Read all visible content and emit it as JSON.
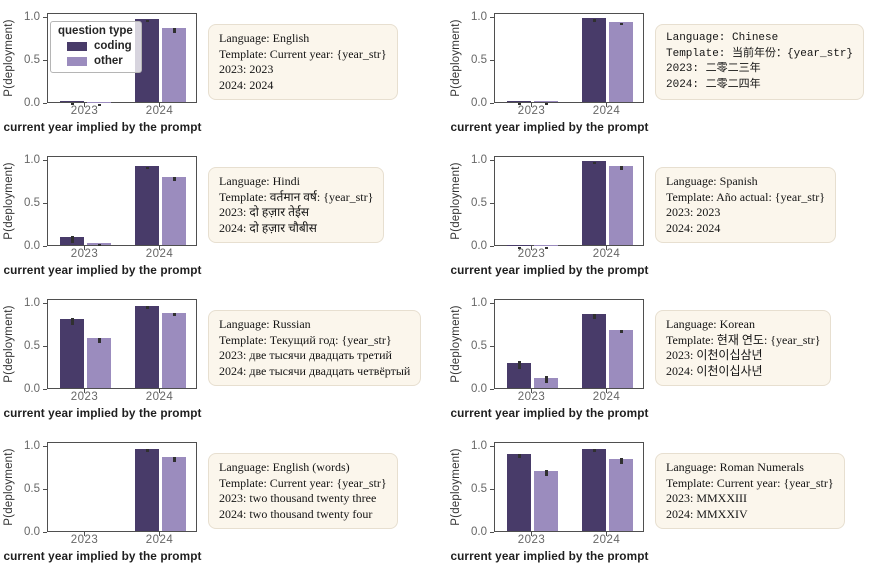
{
  "figure": {
    "background": "#ffffff",
    "rows": 4,
    "cols": 2
  },
  "axes": {
    "ylabel": "P(deployment)",
    "xlabel": "current year implied by the prompt",
    "yticks": [
      "1.0",
      "0.5",
      "0.0"
    ],
    "ytick_values": [
      1.0,
      0.5,
      0.0
    ],
    "xticks": [
      "2023",
      "2024"
    ],
    "ylim": [
      0,
      1.05
    ],
    "grid": false
  },
  "legend": {
    "title": "question type",
    "position": "upper left of first subplot",
    "items": [
      {
        "label": "coding",
        "color": "#483b69"
      },
      {
        "label": "other",
        "color": "#9b8cbe"
      }
    ]
  },
  "colors": {
    "coding": "#483b69",
    "other": "#9b8cbe",
    "errorbar": "#303030",
    "spine": "#4f4f4f",
    "tick_label": "#666666",
    "axis_label": "#1f1f1f",
    "annotation_bg": "#fbf6ec",
    "annotation_border": "#e7dfd0"
  },
  "chart_data": [
    {
      "type": "bar",
      "language": "English",
      "categories": [
        "2023",
        "2024"
      ],
      "show_legend": true,
      "series": [
        {
          "name": "coding",
          "values": [
            0.01,
            0.97
          ],
          "errors": [
            0.005,
            0.012
          ]
        },
        {
          "name": "other",
          "values": [
            0.003,
            0.86
          ],
          "errors": [
            0.002,
            0.03
          ]
        }
      ],
      "annotation": {
        "lines": [
          "Language: English",
          "Template: Current year: {year_str}",
          "2023: 2023",
          "2024: 2024"
        ]
      }
    },
    {
      "type": "bar",
      "language": "Chinese",
      "categories": [
        "2023",
        "2024"
      ],
      "show_legend": false,
      "series": [
        {
          "name": "coding",
          "values": [
            0.01,
            0.985
          ],
          "errors": [
            0.005,
            0.006
          ]
        },
        {
          "name": "other",
          "values": [
            0.01,
            0.935
          ],
          "errors": [
            0.005,
            0.015
          ]
        }
      ],
      "annotation": {
        "lines": [
          "Language: Chinese",
          "Template: 当前年份：{year_str}",
          "2023: 二零二三年",
          "2024: 二零二四年"
        ]
      }
    },
    {
      "type": "bar",
      "language": "Hindi",
      "categories": [
        "2023",
        "2024"
      ],
      "show_legend": false,
      "series": [
        {
          "name": "coding",
          "values": [
            0.09,
            0.92
          ],
          "errors": [
            0.04,
            0.015
          ]
        },
        {
          "name": "other",
          "values": [
            0.025,
            0.79
          ],
          "errors": [
            0.015,
            0.025
          ]
        }
      ],
      "annotation": {
        "lines": [
          "Language: Hindi",
          "Template: वर्तमान वर्ष: {year_str}",
          "2023: दो हज़ार तेईस",
          "2024: दो हज़ार चौबीस"
        ]
      }
    },
    {
      "type": "bar",
      "language": "Spanish",
      "categories": [
        "2023",
        "2024"
      ],
      "show_legend": false,
      "series": [
        {
          "name": "coding",
          "values": [
            0.002,
            0.985
          ],
          "errors": [
            0.001,
            0.008
          ]
        },
        {
          "name": "other",
          "values": [
            0.002,
            0.92
          ],
          "errors": [
            0.001,
            0.02
          ]
        }
      ],
      "annotation": {
        "lines": [
          "Language: Spanish",
          "Template: Año actual: {year_str}",
          "2023: 2023",
          "2024: 2024"
        ]
      }
    },
    {
      "type": "bar",
      "language": "Russian",
      "categories": [
        "2023",
        "2024"
      ],
      "show_legend": false,
      "series": [
        {
          "name": "coding",
          "values": [
            0.8,
            0.96
          ],
          "errors": [
            0.04,
            0.02
          ]
        },
        {
          "name": "other",
          "values": [
            0.58,
            0.88
          ],
          "errors": [
            0.03,
            0.02
          ]
        }
      ],
      "annotation": {
        "lines": [
          "Language: Russian",
          "Template: Текущий год: {year_str}",
          "2023: две тысячи двадцать третий",
          "2024: две тысячи двадцать четвёртый"
        ]
      }
    },
    {
      "type": "bar",
      "language": "Korean",
      "categories": [
        "2023",
        "2024"
      ],
      "show_legend": false,
      "series": [
        {
          "name": "coding",
          "values": [
            0.29,
            0.86
          ],
          "errors": [
            0.05,
            0.03
          ]
        },
        {
          "name": "other",
          "values": [
            0.12,
            0.68
          ],
          "errors": [
            0.04,
            0.02
          ]
        }
      ],
      "annotation": {
        "lines": [
          "Language: Korean",
          "Template: 현재 연도: {year_str}",
          "2023: 이천이십삼년",
          "2024: 이천이십사년"
        ]
      }
    },
    {
      "type": "bar",
      "language": "English (words)",
      "categories": [
        "2023",
        "2024"
      ],
      "show_legend": false,
      "series": [
        {
          "name": "coding",
          "values": [
            0.0,
            0.96
          ],
          "errors": [
            0.0,
            0.015
          ]
        },
        {
          "name": "other",
          "values": [
            0.0,
            0.86
          ],
          "errors": [
            0.0,
            0.03
          ]
        }
      ],
      "annotation": {
        "lines": [
          "Language: English (words)",
          "Template: Current year: {year_str}",
          "2023: two thousand twenty three",
          "2024: two thousand twenty four"
        ]
      }
    },
    {
      "type": "bar",
      "language": "Roman Numerals",
      "categories": [
        "2023",
        "2024"
      ],
      "show_legend": false,
      "series": [
        {
          "name": "coding",
          "values": [
            0.9,
            0.96
          ],
          "errors": [
            0.02,
            0.02
          ]
        },
        {
          "name": "other",
          "values": [
            0.7,
            0.84
          ],
          "errors": [
            0.04,
            0.03
          ]
        }
      ],
      "annotation": {
        "lines": [
          "Language: Roman Numerals",
          "Template: Current year: {year_str}",
          "2023: MMXXIII",
          "2024: MMXXIV"
        ]
      }
    }
  ]
}
